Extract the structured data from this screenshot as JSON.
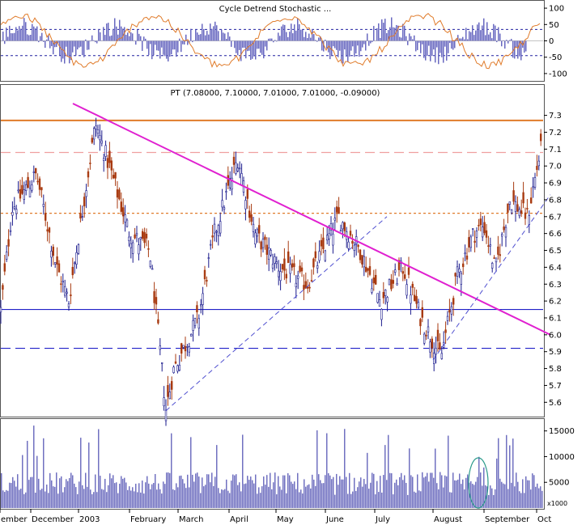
{
  "chart_data": [
    {
      "panel": "oscillator",
      "type": "bar+line",
      "title": "Cycle Detrend Stochastic ...",
      "yticks": [
        100,
        50,
        0,
        -50,
        -100
      ],
      "ylim": [
        -120,
        120
      ],
      "reference_lines": [
        35,
        -45
      ]
    },
    {
      "panel": "price",
      "type": "candlestick",
      "title": "PT (7.08000, 7.10000, 7.01000, 7.01000, -0.09000)",
      "yticks": [
        7.3,
        7.2,
        7.1,
        7.0,
        6.9,
        6.8,
        6.7,
        6.6,
        6.5,
        6.4,
        6.3,
        6.2,
        6.1,
        6.0,
        5.9,
        5.8,
        5.7,
        5.6
      ],
      "ylim": [
        5.52,
        7.37
      ],
      "colors": {
        "up": "#1a1a8c",
        "down": "#a83a10"
      },
      "keypoints": [
        {
          "x": 0,
          "y": 6.1
        },
        {
          "x": 15,
          "y": 6.75
        },
        {
          "x": 45,
          "y": 6.95
        },
        {
          "x": 70,
          "y": 6.4
        },
        {
          "x": 85,
          "y": 6.2
        },
        {
          "x": 118,
          "y": 7.25
        },
        {
          "x": 135,
          "y": 7.0
        },
        {
          "x": 160,
          "y": 6.6
        },
        {
          "x": 185,
          "y": 6.5
        },
        {
          "x": 205,
          "y": 5.56
        },
        {
          "x": 215,
          "y": 5.8
        },
        {
          "x": 245,
          "y": 6.1
        },
        {
          "x": 265,
          "y": 6.6
        },
        {
          "x": 294,
          "y": 7.05
        },
        {
          "x": 315,
          "y": 6.6
        },
        {
          "x": 345,
          "y": 6.4
        },
        {
          "x": 380,
          "y": 6.3
        },
        {
          "x": 418,
          "y": 6.7
        },
        {
          "x": 445,
          "y": 6.5
        },
        {
          "x": 470,
          "y": 6.2
        },
        {
          "x": 498,
          "y": 6.4
        },
        {
          "x": 520,
          "y": 6.1
        },
        {
          "x": 545,
          "y": 5.87
        },
        {
          "x": 565,
          "y": 6.35
        },
        {
          "x": 585,
          "y": 6.6
        },
        {
          "x": 598,
          "y": 6.65
        },
        {
          "x": 612,
          "y": 6.38
        },
        {
          "x": 630,
          "y": 6.8
        },
        {
          "x": 652,
          "y": 6.7
        },
        {
          "x": 668,
          "y": 7.1
        },
        {
          "x": 671,
          "y": 7.01
        }
      ],
      "levels": [
        {
          "y": 7.27,
          "color": "#e07b2a",
          "style": "solid"
        },
        {
          "y": 7.08,
          "color": "#f0a0a0",
          "style": "dashed"
        },
        {
          "y": 6.72,
          "color": "#e07b2a",
          "style": "dotted"
        },
        {
          "y": 6.15,
          "color": "#2020c8",
          "style": "solid"
        },
        {
          "y": 5.92,
          "color": "#2020c8",
          "style": "dashed"
        }
      ],
      "trendlines": [
        {
          "from": {
            "x": 90,
            "y": 7.37
          },
          "to": {
            "x": 680,
            "y": 6.0
          },
          "color": "#e020d0"
        },
        {
          "from": {
            "x": 205,
            "y": 5.55
          },
          "to": {
            "x": 478,
            "y": 6.7
          },
          "color": "#5050d0"
        },
        {
          "from": {
            "x": 535,
            "y": 5.85
          },
          "to": {
            "x": 680,
            "y": 6.83
          },
          "color": "#5050d0"
        }
      ]
    },
    {
      "panel": "volume",
      "type": "bar",
      "yticks": [
        15000,
        10000,
        5000
      ],
      "ylim": [
        0,
        17000
      ],
      "scale_label": "x1000",
      "color": "#7070c0"
    }
  ],
  "xaxis": {
    "labels": [
      {
        "x": 0,
        "text": "ember"
      },
      {
        "x": 38,
        "text": "December"
      },
      {
        "x": 97,
        "text": "2003"
      },
      {
        "x": 160,
        "text": "February"
      },
      {
        "x": 220,
        "text": "March"
      },
      {
        "x": 283,
        "text": "April"
      },
      {
        "x": 341,
        "text": "May"
      },
      {
        "x": 402,
        "text": "June"
      },
      {
        "x": 463,
        "text": "July"
      },
      {
        "x": 535,
        "text": "August"
      },
      {
        "x": 598,
        "text": "September"
      },
      {
        "x": 663,
        "text": "Oct"
      }
    ]
  }
}
